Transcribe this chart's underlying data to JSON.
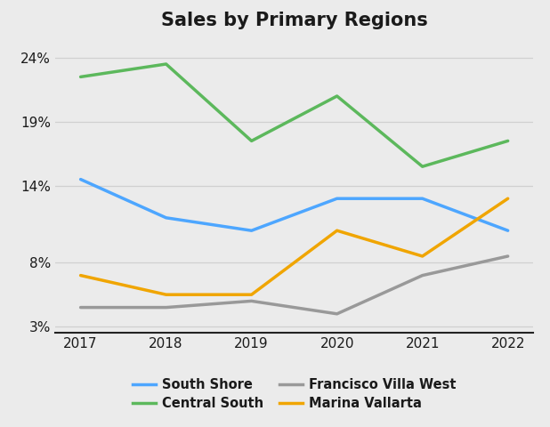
{
  "title": "Sales by Primary Regions",
  "years": [
    2017,
    2018,
    2019,
    2020,
    2021,
    2022
  ],
  "series": {
    "South Shore": {
      "values": [
        14.5,
        11.5,
        10.5,
        13.0,
        13.0,
        10.5
      ],
      "color": "#4da6ff"
    },
    "Central South": {
      "values": [
        22.5,
        23.5,
        17.5,
        21.0,
        15.5,
        17.5
      ],
      "color": "#5cb85c"
    },
    "Francisco Villa West": {
      "values": [
        4.5,
        4.5,
        5.0,
        4.0,
        7.0,
        8.5
      ],
      "color": "#999999"
    },
    "Marina Vallarta": {
      "values": [
        7.0,
        5.5,
        5.5,
        10.5,
        8.5,
        13.0
      ],
      "color": "#f0a500"
    }
  },
  "yticks": [
    3,
    8,
    14,
    19,
    24
  ],
  "ylim": [
    2.5,
    25.5
  ],
  "xlim": [
    2016.7,
    2022.3
  ],
  "background_color": "#ebebeb",
  "legend_order_col1": [
    "South Shore",
    "Francisco Villa West"
  ],
  "legend_order_col2": [
    "Central South",
    "Marina Vallarta"
  ],
  "title_fontsize": 15,
  "axis_fontsize": 11,
  "legend_fontsize": 10.5,
  "linewidth": 2.5
}
